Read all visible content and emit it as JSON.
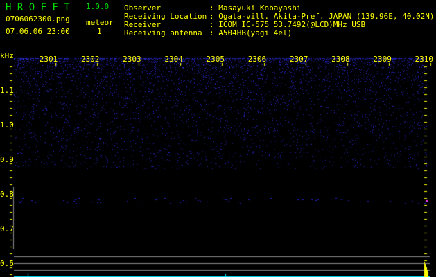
{
  "app": {
    "name": "H R O F F T",
    "version": "1.0.0"
  },
  "file": {
    "name": "0706062300.png",
    "datetime": "07.06.06 23:00"
  },
  "meteor": {
    "label": "meteor",
    "count": "1"
  },
  "info": {
    "observer_label": "Observer",
    "observer": ": Masayuki Kobayashi",
    "location_label": "Receiving Location",
    "location": ": Ogata-vill. Akita-Pref. JAPAN (139.96E, 40.02N)",
    "receiver_label": "Receiver",
    "receiver": ": ICOM IC-575 53.7492(@LCD)MHz USB",
    "antenna_label": "Receiving antenna",
    "antenna": ": A504HB(yagi 4el)"
  },
  "axis": {
    "y_unit": "kHz",
    "y_ticks": [
      "1.1",
      "1.0",
      "0.9",
      "0.8",
      "0.7",
      "0.6"
    ],
    "x_ticks": [
      "2301",
      "2302",
      "2303",
      "2304",
      "2305",
      "2306",
      "2307",
      "2308",
      "2309",
      "2310"
    ]
  },
  "colors": {
    "noise": "#1a1aff",
    "text": "#ffff00",
    "title": "#00e000",
    "baseline": "#00e5ff"
  }
}
